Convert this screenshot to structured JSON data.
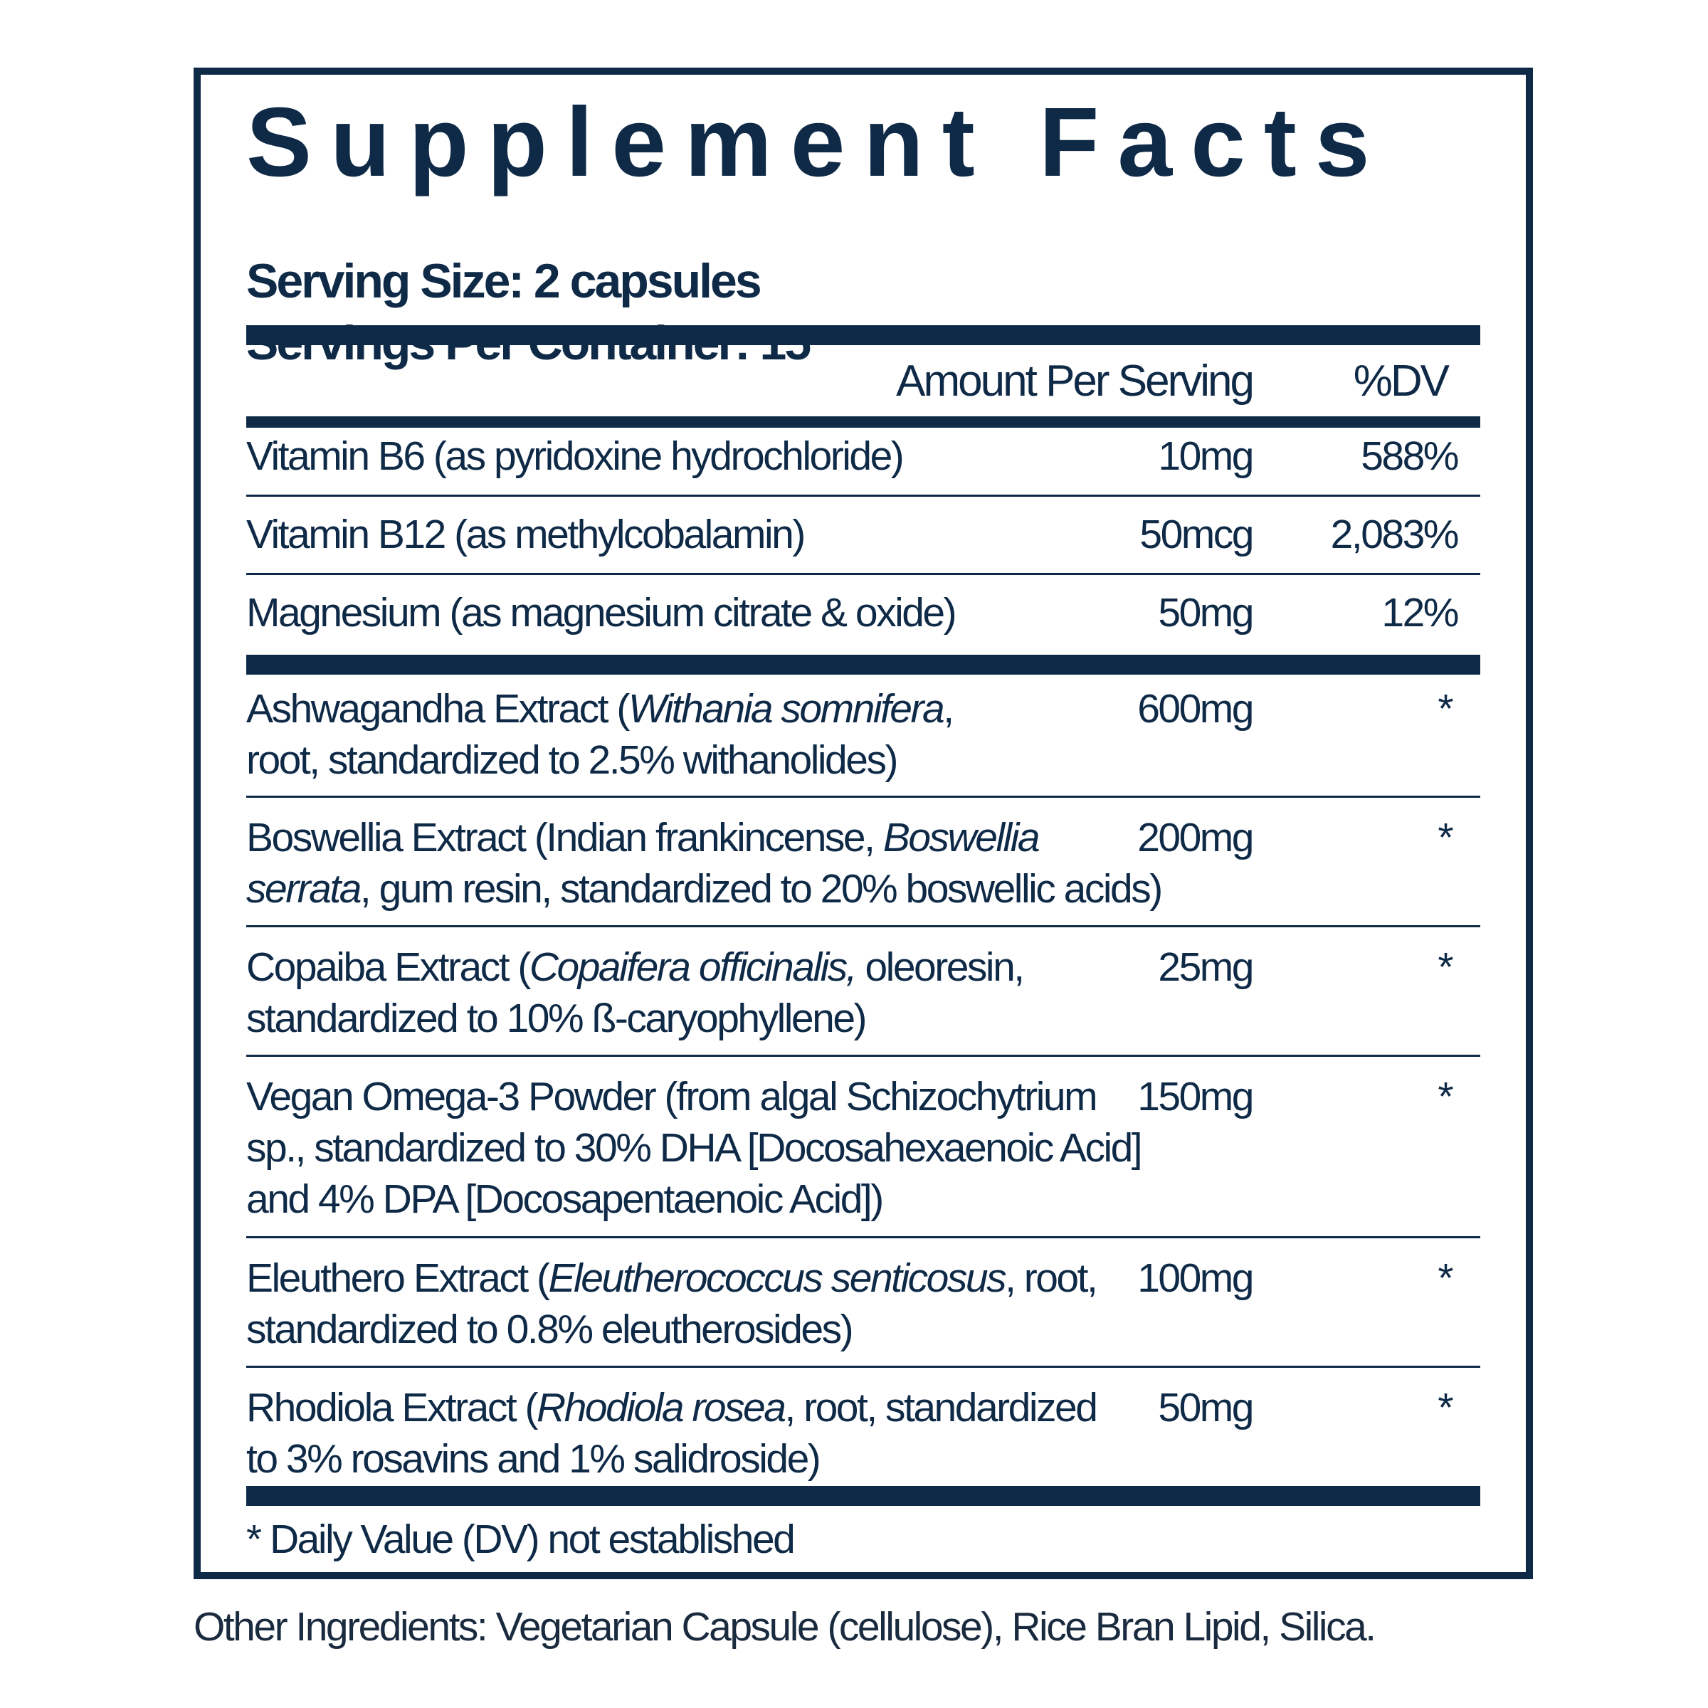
{
  "title": "Supplement Facts",
  "serving_size": "Serving Size: 2 capsules",
  "servings_per_container": "Servings Per Container: 15",
  "columns": {
    "amount": "Amount Per Serving",
    "dv": "%DV"
  },
  "vitamins": [
    {
      "name": "Vitamin B6 (as pyridoxine hydrochloride)",
      "amount": "10mg",
      "dv": "588%"
    },
    {
      "name": "Vitamin B12 (as methylcobalamin)",
      "amount": "50mcg",
      "dv": "2,083%"
    },
    {
      "name": "Magnesium (as magnesium citrate & oxide)",
      "amount": "50mg",
      "dv": "12%"
    }
  ],
  "extracts": [
    {
      "line1_pre": "Ashwagandha Extract (",
      "line1_it": "Withania somnifera",
      "line1_post": ",",
      "line2_it": "",
      "line2": "root, standardized to 2.5% withanolides)",
      "line3": "",
      "amount": "600mg",
      "dv": "*"
    },
    {
      "line1_pre": "Boswellia Extract (Indian frankincense, ",
      "line1_it": "Boswellia",
      "line1_post": "",
      "line2_it": "serrata",
      "line2": ", gum resin, standardized to 20% boswellic acids)",
      "line3": "",
      "amount": "200mg",
      "dv": "*"
    },
    {
      "line1_pre": "Copaiba Extract (",
      "line1_it": "Copaifera officinalis,",
      "line1_post": " oleoresin,",
      "line2_it": "",
      "line2": "standardized to 10% ß-caryophyllene)",
      "line3": "",
      "amount": "25mg",
      "dv": "*"
    },
    {
      "line1_pre": "Vegan Omega-3 Powder (from algal Schizochytrium",
      "line1_it": "",
      "line1_post": "",
      "line2_it": "",
      "line2": "sp., standardized to 30% DHA [Docosahexaenoic Acid]",
      "line3": "and 4% DPA [Docosapentaenoic Acid])",
      "amount": "150mg",
      "dv": "*"
    },
    {
      "line1_pre": "Eleuthero Extract (",
      "line1_it": "Eleutherococcus senticosus",
      "line1_post": ", root,",
      "line2_it": "",
      "line2": "standardized to 0.8% eleutherosides)",
      "line3": "",
      "amount": "100mg",
      "dv": "*"
    },
    {
      "line1_pre": "Rhodiola Extract (",
      "line1_it": "Rhodiola rosea",
      "line1_post": ", root, standardized",
      "line2_it": "",
      "line2": "to 3% rosavins and 1% salidroside)",
      "line3": "",
      "amount": "50mg",
      "dv": "*"
    }
  ],
  "footnote": "* Daily Value (DV) not established",
  "other_ingredients": "Other Ingredients: Vegetarian Capsule (cellulose), Rice Bran Lipid, Silica.",
  "colors": {
    "ink": "#0f2a47"
  }
}
